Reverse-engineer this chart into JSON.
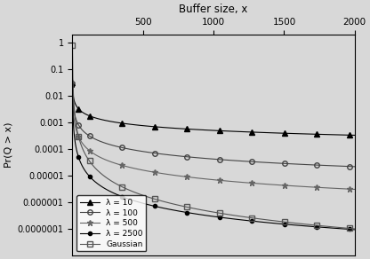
{
  "title": "Buffer size, x",
  "ylabel": "Pr(Q > x)",
  "x_min": 0,
  "x_max": 2000,
  "y_min": 1e-08,
  "y_max": 2,
  "xticks": [
    500,
    1000,
    1500,
    2000
  ],
  "background_color": "#d8d8d8",
  "series": [
    {
      "label": "λ = 10",
      "marker": "^",
      "color": "#000000",
      "fillstyle": "full",
      "markersize": 4,
      "linewidth": 0.8,
      "A": 0.032,
      "alpha": 0.6
    },
    {
      "label": "λ = 100",
      "marker": "o",
      "color": "#444444",
      "fillstyle": "none",
      "markersize": 4,
      "linewidth": 0.8,
      "A": 0.03,
      "alpha": 0.95
    },
    {
      "label": "λ = 500",
      "marker": "*",
      "color": "#666666",
      "fillstyle": "full",
      "markersize": 5,
      "linewidth": 0.8,
      "A": 0.028,
      "alpha": 1.2
    },
    {
      "label": "λ = 2500",
      "marker": "o",
      "color": "#000000",
      "fillstyle": "full",
      "markersize": 3,
      "linewidth": 0.8,
      "A": 0.026,
      "alpha": 1.65
    },
    {
      "label": "Gaussian",
      "marker": "s",
      "color": "#555555",
      "fillstyle": "none",
      "markersize": 4,
      "linewidth": 0.8,
      "A": 0.85,
      "alpha": 2.1
    }
  ]
}
